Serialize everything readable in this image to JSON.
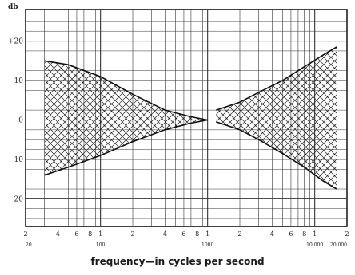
{
  "chart_data": {
    "type": "area",
    "title": "",
    "xlabel": "frequency—in cycles per second",
    "ylabel": "db",
    "xscale": "log",
    "xlim": [
      20,
      20000
    ],
    "ylim": [
      -27,
      28
    ],
    "grid": true,
    "y_ticks": [
      {
        "value": 20,
        "label": "+20"
      },
      {
        "value": 10,
        "label": "10"
      },
      {
        "value": 0,
        "label": "0"
      },
      {
        "value": -10,
        "label": "10"
      },
      {
        "value": -20,
        "label": "20"
      }
    ],
    "x_ticks": [
      {
        "value": 20,
        "label": "2"
      },
      {
        "value": 40,
        "label": "4"
      },
      {
        "value": 60,
        "label": "6"
      },
      {
        "value": 80,
        "label": "8"
      },
      {
        "value": 100,
        "label": "1"
      },
      {
        "value": 200,
        "label": "2"
      },
      {
        "value": 400,
        "label": "4"
      },
      {
        "value": 600,
        "label": "6"
      },
      {
        "value": 800,
        "label": "8"
      },
      {
        "value": 1000,
        "label": "1"
      },
      {
        "value": 2000,
        "label": "2"
      },
      {
        "value": 4000,
        "label": "4"
      },
      {
        "value": 6000,
        "label": "6"
      },
      {
        "value": 8000,
        "label": "8"
      },
      {
        "value": 10000,
        "label": "1"
      },
      {
        "value": 20000,
        "label": "2"
      }
    ],
    "x_decade_labels": [
      {
        "value": 20,
        "label": "20"
      },
      {
        "value": 100,
        "label": "100"
      },
      {
        "value": 1000,
        "label": "1000"
      },
      {
        "value": 10000,
        "label": "10.000"
      },
      {
        "value": 20000,
        "label": "20.000"
      }
    ],
    "series": [
      {
        "x": [
          30,
          50,
          100,
          200,
          400,
          700,
          1000
        ],
        "upper": [
          15,
          14,
          11,
          6.5,
          2.5,
          0.8,
          0
        ],
        "lower": [
          -14,
          -12,
          -9,
          -5.5,
          -2.5,
          -0.8,
          0
        ]
      },
      {
        "x": [
          1200,
          2000,
          3000,
          5000,
          8000,
          12000,
          16000
        ],
        "upper": [
          2.5,
          4.5,
          7,
          10,
          13.5,
          16.5,
          18.5
        ],
        "lower": [
          -0.5,
          -2.5,
          -5,
          -8.5,
          -12,
          -15.5,
          -17.5
        ]
      }
    ]
  }
}
